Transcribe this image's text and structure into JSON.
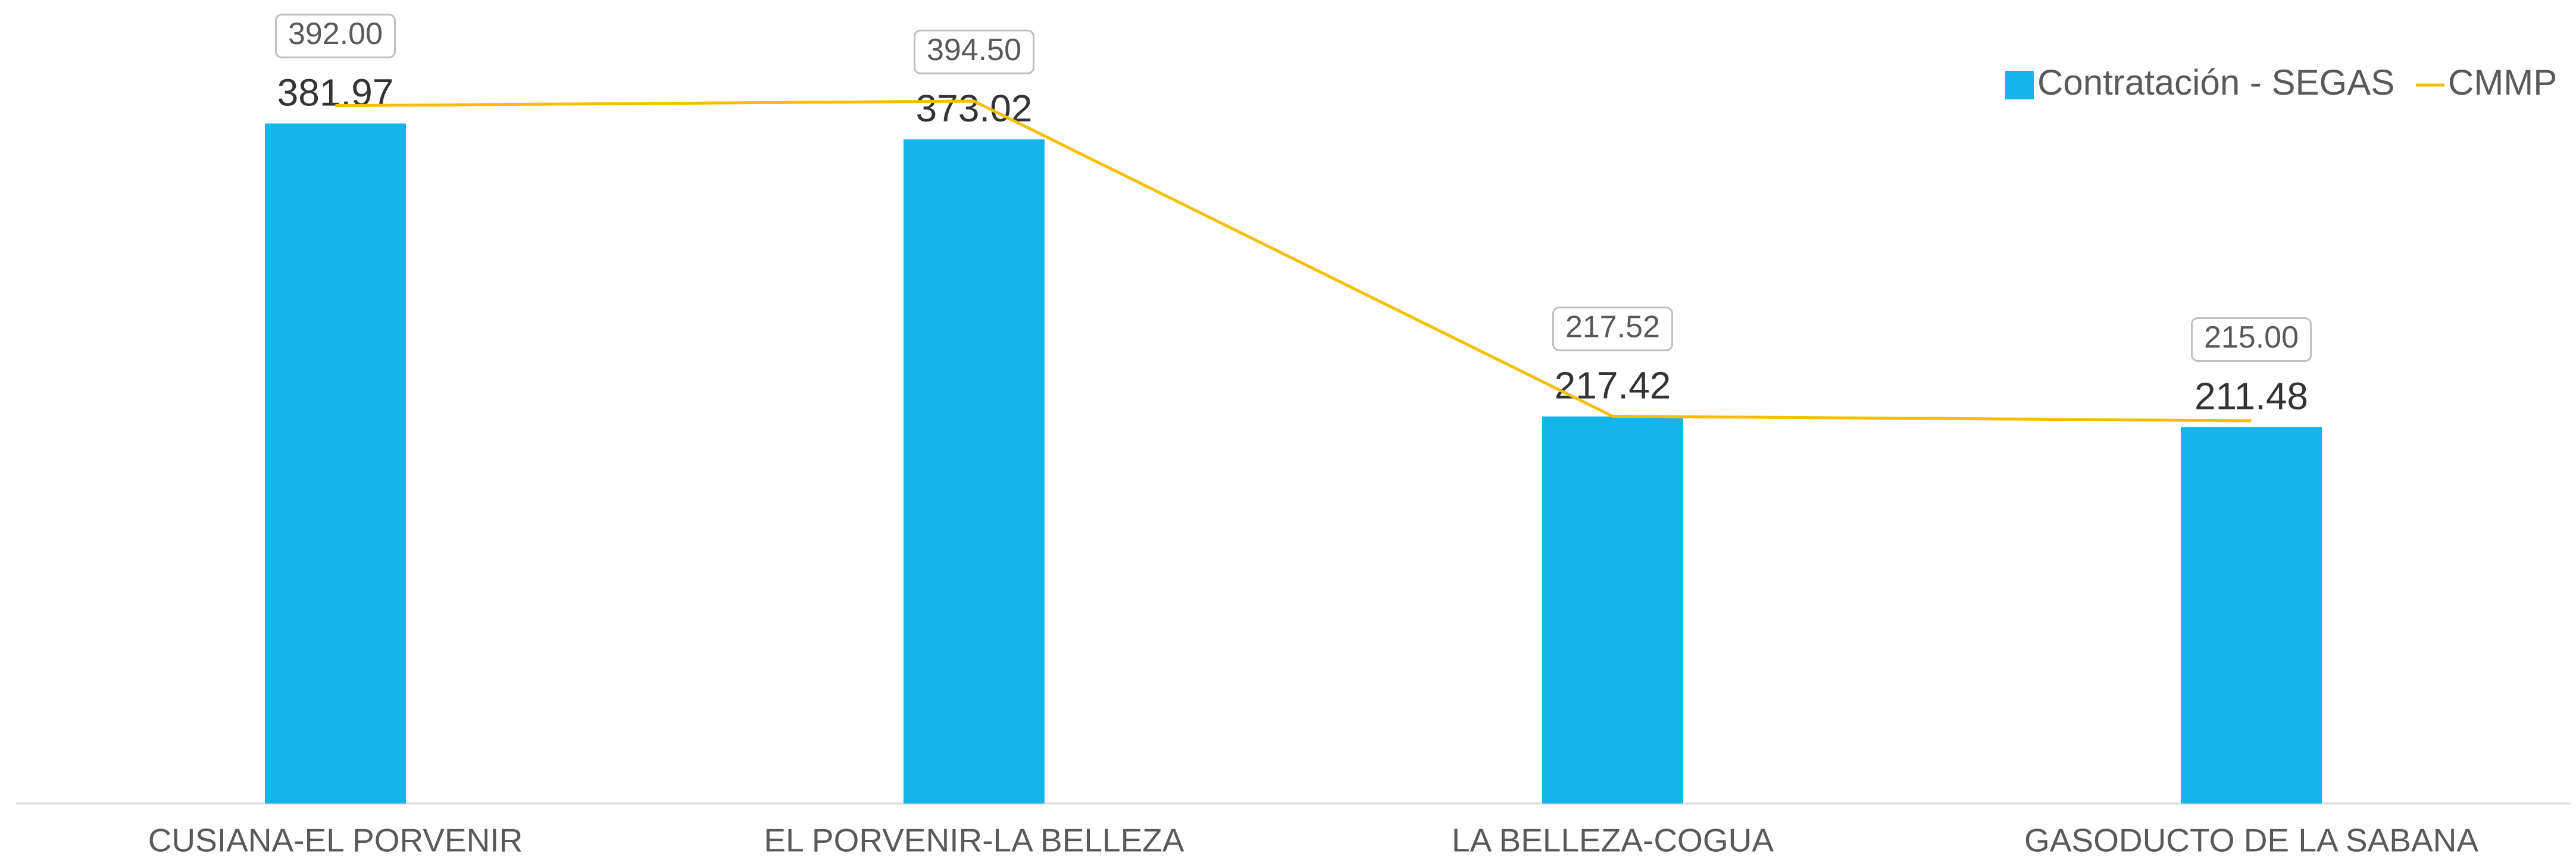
{
  "chart_data": {
    "type": "bar",
    "categories": [
      "CUSIANA-EL PORVENIR",
      "EL PORVENIR-LA BELLEZA",
      "LA BELLEZA-COGUA",
      "GASODUCTO DE LA SABANA"
    ],
    "series": [
      {
        "name": "Contratación - SEGAS",
        "type": "bar",
        "color": "#13b5ea",
        "values": [
          381.97,
          373.02,
          217.42,
          211.48
        ]
      },
      {
        "name": "CMMP",
        "type": "line",
        "color": "#f5bf00",
        "values": [
          392.0,
          394.5,
          217.52,
          215.0
        ],
        "value_labels": [
          "392.00",
          "394.50",
          "217.52",
          "215.00"
        ]
      }
    ],
    "ylim": [
      0,
      450
    ],
    "legend": "top-right"
  }
}
